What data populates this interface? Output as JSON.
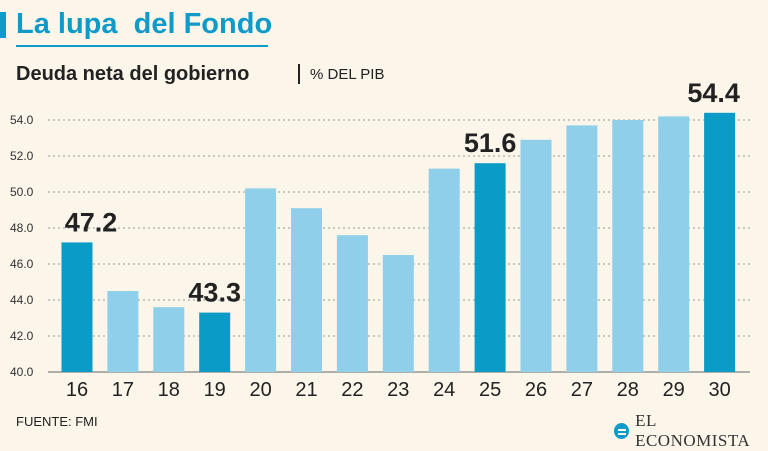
{
  "header": {
    "title": "La lupa  del Fondo",
    "subtitle": "Deuda neta del gobierno",
    "unit": "% DEL PIB"
  },
  "footer": {
    "source": "FUENTE: FMI",
    "brand": "EL ECONOMISTA"
  },
  "colors": {
    "highlight": "#0a9bc6",
    "normal": "#8fcfe9",
    "title": "#0e9bc9"
  },
  "chart_data": {
    "type": "bar",
    "categories": [
      "16",
      "17",
      "18",
      "19",
      "20",
      "21",
      "22",
      "23",
      "24",
      "25",
      "26",
      "27",
      "28",
      "29",
      "30"
    ],
    "values": [
      47.2,
      44.5,
      43.6,
      43.3,
      50.2,
      49.1,
      47.6,
      46.5,
      51.3,
      51.6,
      52.9,
      53.7,
      54.0,
      54.2,
      54.4
    ],
    "highlighted": [
      "16",
      "19",
      "25",
      "30"
    ],
    "data_labels": {
      "16": "47.2",
      "19": "43.3",
      "25": "51.6",
      "30": "54.4"
    },
    "yticks": [
      "40.0",
      "42.0",
      "44.0",
      "46.0",
      "48.0",
      "50.0",
      "52.0",
      "54.0"
    ],
    "ylim": [
      40,
      55
    ],
    "grid": true,
    "xlabel": "",
    "ylabel": ""
  }
}
